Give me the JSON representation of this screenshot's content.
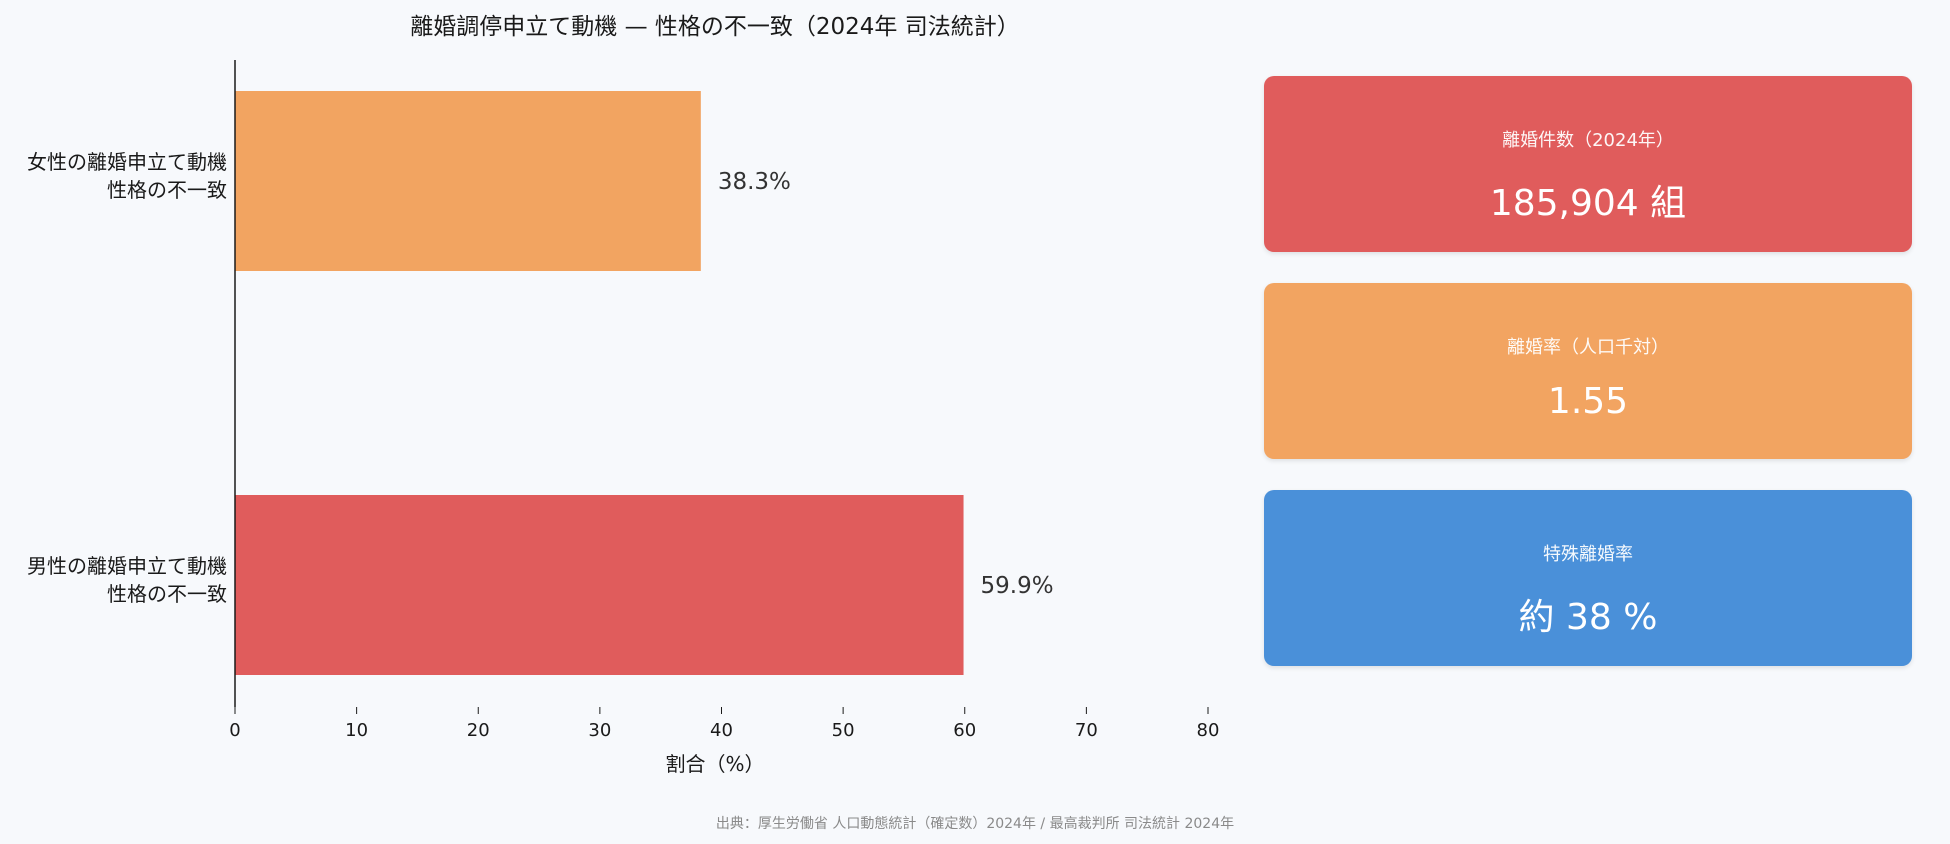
{
  "chart_data": {
    "type": "bar",
    "orientation": "horizontal",
    "title": "離婚調停申立て動機 — 性格の不一致（2024年 司法統計）",
    "xlabel": "割合（%）",
    "ylabel": "",
    "xlim": [
      0,
      80
    ],
    "xticks": [
      0,
      10,
      20,
      30,
      40,
      50,
      60,
      70,
      80
    ],
    "grid": false,
    "categories": [
      [
        "女性の離婚申立て動機",
        "性格の不一致"
      ],
      [
        "男性の離婚申立て動機",
        "性格の不一致"
      ]
    ],
    "values": [
      38.3,
      59.9
    ],
    "value_labels": [
      "38.3%",
      "59.9%"
    ],
    "colors": [
      "#f2a461",
      "#e05c5c"
    ]
  },
  "kpis": [
    {
      "label": "離婚件数（2024年）",
      "value": "185,904 組",
      "color": "#e05c5c"
    },
    {
      "label": "離婚率（人口千対）",
      "value": "1.55",
      "color": "#f2a461"
    },
    {
      "label": "特殊離婚率",
      "value": "約 38 %",
      "color": "#4a90d9"
    }
  ],
  "source": "出典：厚生労働省 人口動態統計（確定数）2024年 / 最高裁判所 司法統計 2024年"
}
